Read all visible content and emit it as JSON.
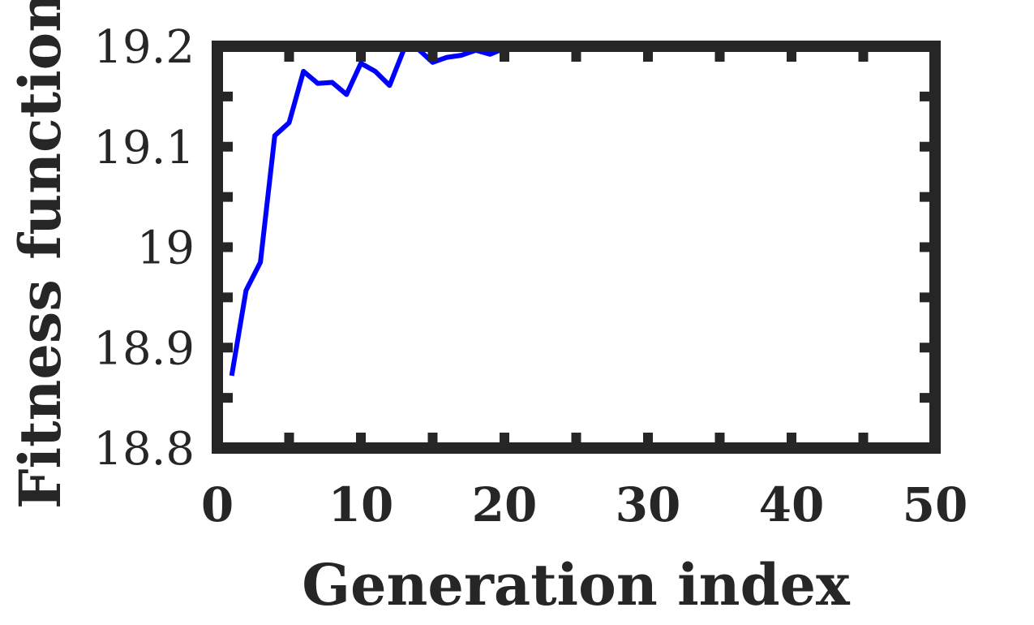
{
  "chart_data": {
    "type": "line",
    "title": "",
    "xlabel": "Generation index",
    "ylabel": "Fitness function",
    "xlim": [
      0,
      50
    ],
    "ylim": [
      18.8,
      19.2
    ],
    "xticks": [
      0,
      10,
      20,
      30,
      40,
      50
    ],
    "yticks": [
      18.8,
      18.9,
      19,
      19.1,
      19.2
    ],
    "xtick_labels": [
      "0",
      "10",
      "20",
      "30",
      "40",
      "50"
    ],
    "ytick_labels": [
      "18.8",
      "18.9",
      "19",
      "19.1",
      "19.2"
    ],
    "grid": false,
    "legend": "none",
    "series": [
      {
        "color": "#0000ff",
        "x": [
          1,
          2,
          3,
          4,
          5,
          6,
          7,
          8,
          9,
          10,
          11,
          12,
          13,
          14,
          15,
          16,
          17,
          18,
          19,
          20,
          21,
          22,
          23,
          24,
          25,
          26,
          27,
          28,
          29,
          30,
          31,
          32,
          33,
          34,
          35,
          36,
          37,
          38,
          39,
          40,
          41,
          42,
          43,
          44,
          45,
          46,
          47,
          48,
          49,
          50
        ],
        "y": [
          18.872,
          18.957,
          18.985,
          19.111,
          19.124,
          19.175,
          19.163,
          19.164,
          19.152,
          19.183,
          19.175,
          19.161,
          19.197,
          19.197,
          19.184,
          19.189,
          19.191,
          19.196,
          19.192,
          19.198,
          19.199,
          19.197,
          19.199,
          19.2,
          19.201,
          19.2,
          19.201,
          19.201,
          19.201,
          19.201,
          19.201,
          19.201,
          19.201,
          19.201,
          19.201,
          19.201,
          19.201,
          19.201,
          19.201,
          19.201,
          19.201,
          19.201,
          19.201,
          19.201,
          19.201,
          19.201,
          19.201,
          19.201,
          19.201,
          19.201
        ]
      }
    ]
  },
  "colors": {
    "axis": "#262626",
    "line": "#0000ff",
    "background": "#ffffff"
  }
}
